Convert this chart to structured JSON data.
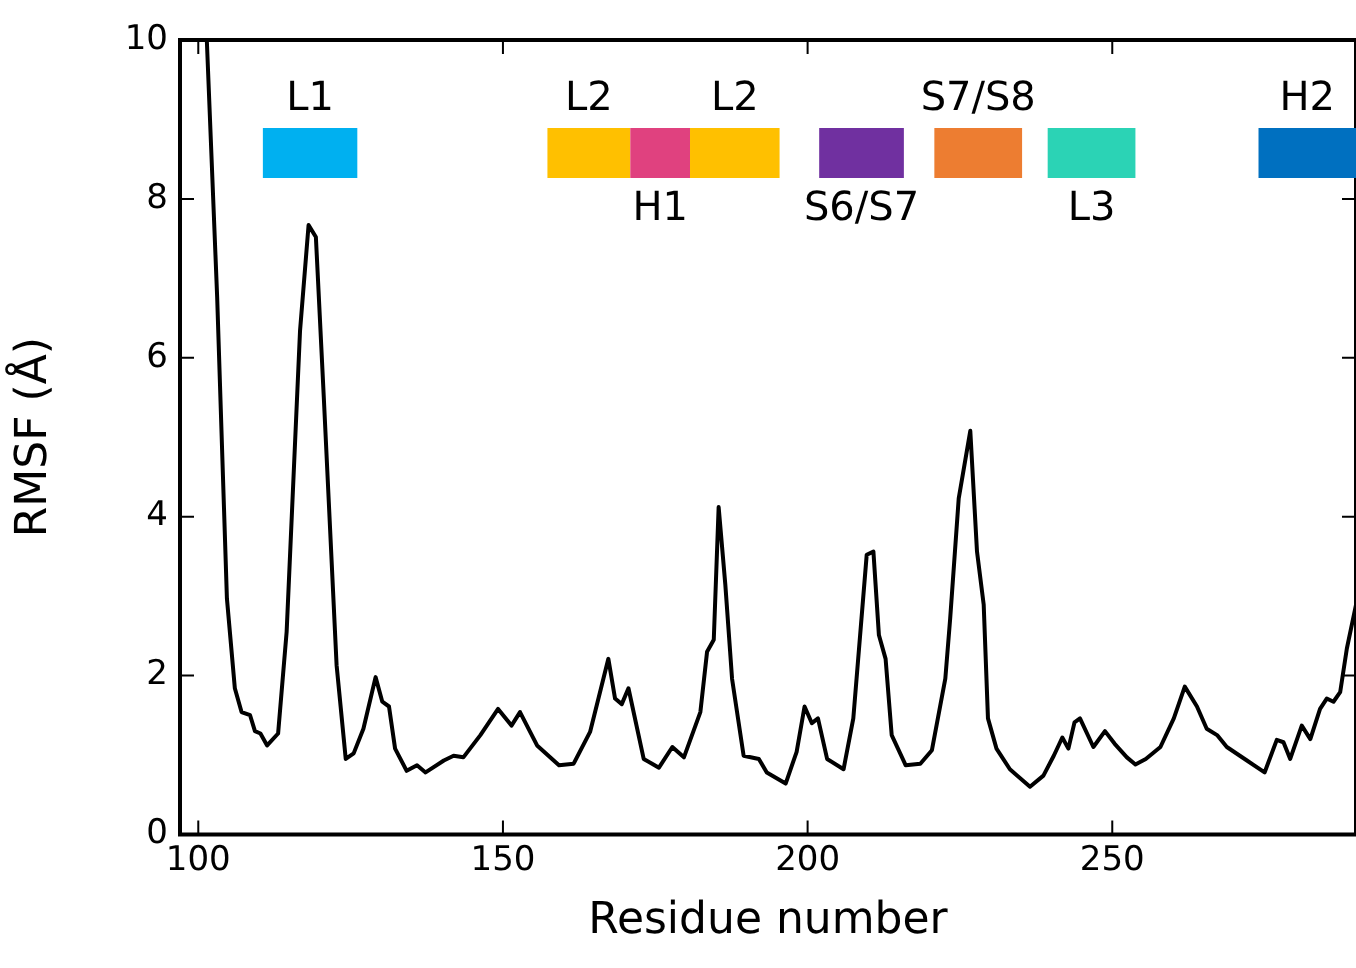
{
  "chart_data": {
    "type": "line",
    "xlabel": "Residue number",
    "ylabel": "RMSF (Å)",
    "xlim": [
      97,
      290
    ],
    "ylim": [
      0,
      10
    ],
    "xticks": [
      100,
      150,
      200,
      250
    ],
    "yticks": [
      0,
      2,
      4,
      6,
      8,
      10
    ],
    "grid": false,
    "legend": false,
    "marker": "none",
    "line_style": "solid",
    "series": [
      {
        "color": "#000000",
        "x": [
          101.4,
          103.1,
          104.7,
          106.0,
          107.1,
          108.5,
          109.3,
          110.2,
          111.3,
          113.1,
          114.5,
          116.7,
          118.1,
          119.3,
          120.6,
          122.7,
          124.2,
          125.5,
          127.1,
          129.1,
          130.2,
          131.3,
          132.3,
          134.2,
          135.9,
          137.3,
          140.3,
          141.9,
          143.5,
          146.3,
          149.2,
          151.4,
          152.8,
          155.6,
          159.2,
          161.6,
          164.3,
          167.3,
          168.4,
          169.5,
          170.6,
          173.1,
          175.6,
          177.8,
          179.7,
          182.4,
          183.5,
          184.6,
          185.4,
          186.5,
          187.6,
          189.5,
          192.0,
          193.3,
          196.4,
          198.2,
          199.5,
          200.7,
          201.7,
          203.2,
          205.9,
          207.5,
          209.7,
          210.8,
          211.7,
          212.8,
          213.8,
          216.1,
          218.5,
          220.4,
          222.6,
          223.4,
          224.8,
          226.7,
          227.8,
          228.9,
          229.6,
          231.0,
          233.2,
          236.5,
          238.7,
          240.4,
          241.8,
          242.8,
          243.8,
          244.7,
          246.9,
          248.8,
          250.4,
          252.4,
          253.8,
          255.5,
          257.9,
          260.1,
          261.9,
          263.9,
          265.5,
          267.2,
          268.8,
          272.1,
          275.0,
          277.0,
          278.1,
          279.2,
          281.1,
          282.5,
          284.1,
          285.2,
          286.3,
          287.4,
          288.5,
          290.0
        ],
        "values": [
          10.0,
          6.76,
          2.97,
          1.84,
          1.54,
          1.5,
          1.3,
          1.27,
          1.12,
          1.27,
          2.55,
          6.34,
          7.67,
          7.52,
          5.5,
          2.13,
          0.95,
          1.02,
          1.33,
          1.98,
          1.67,
          1.61,
          1.08,
          0.8,
          0.87,
          0.78,
          0.93,
          0.99,
          0.97,
          1.25,
          1.58,
          1.37,
          1.54,
          1.12,
          0.87,
          0.89,
          1.29,
          2.21,
          1.71,
          1.64,
          1.84,
          0.95,
          0.84,
          1.1,
          0.97,
          1.54,
          2.3,
          2.45,
          4.12,
          3.14,
          1.96,
          0.99,
          0.95,
          0.78,
          0.64,
          1.04,
          1.61,
          1.4,
          1.46,
          0.95,
          0.82,
          1.46,
          3.52,
          3.56,
          2.51,
          2.21,
          1.25,
          0.87,
          0.89,
          1.06,
          1.96,
          2.72,
          4.23,
          5.08,
          3.56,
          2.89,
          1.46,
          1.08,
          0.82,
          0.6,
          0.74,
          0.99,
          1.22,
          1.08,
          1.41,
          1.46,
          1.1,
          1.3,
          1.14,
          0.97,
          0.88,
          0.95,
          1.1,
          1.46,
          1.86,
          1.61,
          1.33,
          1.25,
          1.1,
          0.93,
          0.78,
          1.19,
          1.16,
          0.95,
          1.37,
          1.2,
          1.58,
          1.71,
          1.67,
          1.79,
          2.34,
          2.89
        ]
      }
    ],
    "bands": [
      {
        "axis": "x",
        "from": 110.6,
        "to": 126.1,
        "label": "L1",
        "color": "#00b0f0"
      },
      {
        "axis": "x",
        "from": 157.3,
        "to": 170.9,
        "label": "L2",
        "color": "#ffc000"
      },
      {
        "axis": "x",
        "from": 170.9,
        "to": 180.7,
        "label": "H1",
        "color": "#e0417f"
      },
      {
        "axis": "x",
        "from": 180.7,
        "to": 195.4,
        "label": "L2",
        "color": "#ffc000"
      },
      {
        "axis": "x",
        "from": 201.9,
        "to": 215.8,
        "label": "S6/S7",
        "color": "#7030a0"
      },
      {
        "axis": "x",
        "from": 220.8,
        "to": 235.2,
        "label": "S7/S8",
        "color": "#ed7d31"
      },
      {
        "axis": "x",
        "from": 239.4,
        "to": 253.8,
        "label": "L3",
        "color": "#2bd3b5"
      },
      {
        "axis": "x",
        "from": 274.0,
        "to": 290.0,
        "label": "H2",
        "color": "#0070c0"
      }
    ]
  }
}
